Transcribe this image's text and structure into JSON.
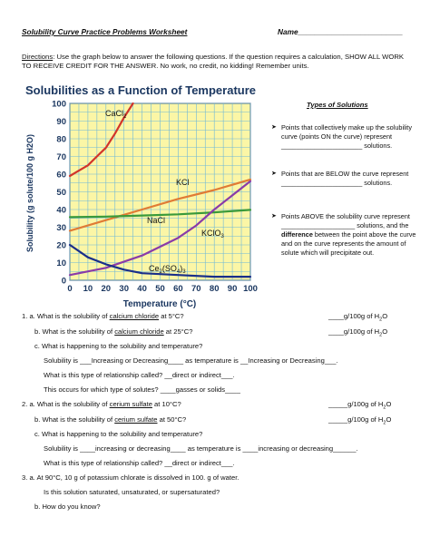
{
  "header": {
    "title": "Solubility Curve Practice Problems Worksheet",
    "name_label": "Name_________________________"
  },
  "directions": {
    "label": "Directions",
    "text": ":  Use the graph below to answer the following questions.  If the question requires a calculation, SHOW ALL WORK TO RECEIVE CREDIT FOR THE ANSWER.  No work, no credit, no kidding!  Remember units."
  },
  "chart_data": {
    "type": "line",
    "title": "Solubilities as a Function of Temperature",
    "xlabel": "Temperature (°C)",
    "ylabel": "Solubility (g solute/100 g H2O)",
    "xlim": [
      0,
      100
    ],
    "ylim": [
      0,
      100
    ],
    "x_ticks": [
      "0",
      "10",
      "20",
      "30",
      "40",
      "50",
      "60",
      "70",
      "80",
      "90",
      "100"
    ],
    "y_ticks": [
      "0",
      "10",
      "20",
      "30",
      "40",
      "50",
      "60",
      "70",
      "80",
      "90",
      "100"
    ],
    "grid": true,
    "series": [
      {
        "name": "CaCl2",
        "color": "#d2352a",
        "x": [
          0,
          5,
          10,
          15,
          20,
          25,
          30,
          35
        ],
        "y": [
          59,
          62,
          65,
          70,
          75,
          83,
          92,
          100
        ]
      },
      {
        "name": "KCl",
        "color": "#e07b35",
        "x": [
          0,
          20,
          40,
          60,
          80,
          100
        ],
        "y": [
          28,
          34,
          40,
          46,
          51,
          57
        ]
      },
      {
        "name": "NaCl",
        "color": "#3a9a3a",
        "x": [
          0,
          20,
          40,
          60,
          80,
          100
        ],
        "y": [
          35.7,
          36,
          36.6,
          37.3,
          38.4,
          39.8
        ]
      },
      {
        "name": "KClO3",
        "color": "#8a3ba8",
        "x": [
          0,
          20,
          40,
          60,
          70,
          80,
          90,
          100
        ],
        "y": [
          3,
          7,
          14,
          24,
          31,
          40,
          48,
          56
        ]
      },
      {
        "name": "Ce2(SO4)3",
        "color": "#1a2f8a",
        "x": [
          0,
          10,
          20,
          30,
          40,
          60,
          80,
          100
        ],
        "y": [
          20,
          13,
          9,
          6,
          4,
          3,
          2,
          2
        ]
      }
    ],
    "labels": {
      "cacl2": "CaCl",
      "cacl2_sub": "2",
      "kcl": "KCl",
      "nacl": "NaCl",
      "kclo3": "KClO",
      "kclo3_sub": "3",
      "ce": "Ce",
      "ce_sub1": "2",
      "ce_mid": "(SO",
      "ce_sub2": "4",
      "ce_end": ")",
      "ce_sub3": "3"
    }
  },
  "types": {
    "title": "Types of Solutions",
    "items": [
      "Points that collectively make up the solubility curve (points ON the curve) represent ______________________ solutions.",
      "Points that are BELOW the curve represent ______________________ solutions.",
      "Points ABOVE the solubility curve represent ____________________ solutions, and the difference between the point above the curve and on the curve represents the amount of solute which will precipitate out."
    ],
    "difference_word": "difference"
  },
  "questions": {
    "q1a_pre": "1.  a.   What is the solubility of ",
    "q1a_u": "calcium chloride",
    "q1a_post": " at 5°C?",
    "q1a_ans": "____g/100g of H",
    "q1b_pre": "b.   What is the solubility of ",
    "q1b_u": "calcium chloride",
    "q1b_post": " at 25°C?",
    "q1b_ans": "____g/100g of H",
    "q1c": "c.   What is happening to the solubility and temperature?",
    "q1c_sol": "Solubility is ___Increasing or Decreasing____ as temperature is __Increasing or Decreasing___.",
    "q1c_rel": "What is this type of relationship called?  __direct or indirect___.",
    "q1c_occ": "This occurs for which type of solutes?  ____gasses or solids____",
    "q2a_pre": "2.  a.   What is the solubility of ",
    "q2a_u": "cerium sulfate",
    "q2a_post": " at 10°C?",
    "q2a_ans": "_____g/100g of H",
    "q2b_pre": "b.   What is the solubility of ",
    "q2b_u": "cerium sulfate",
    "q2b_post": " at 50°C?",
    "q2b_ans": "_____g/100g of H",
    "q2c": "c. What is happening to the solubility and temperature?",
    "q2c_sol": "Solubility is ____increasing or decreasing____ as temperature is ____increasing or decreasing______.",
    "q2c_rel": "What is this type of relationship called?  __direct or indirect___.",
    "q3a": "3.  a.  At 90°C, 10 g of potassium chlorate is dissolved in 100. g of water.",
    "q3a_ask": "Is this solution saturated, unsaturated, or supersaturated?",
    "q3b": "b.   How do you know?",
    "h2o_sub": "2",
    "h2o_o": "O"
  }
}
